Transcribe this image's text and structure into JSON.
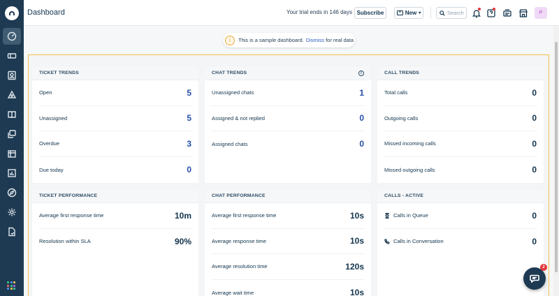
{
  "header": {
    "title": "Dashboard",
    "trial_text": "Your trial ends in 146 days",
    "subscribe_label": "Subscribe",
    "new_label": "New",
    "search_placeholder": "Search",
    "avatar_initial": "P"
  },
  "notice": {
    "text": "This is a sample dashboard.",
    "dismiss": "Dismiss",
    "suffix": "for real data"
  },
  "ticket_trends": {
    "title": "TICKET TRENDS",
    "rows": [
      {
        "label": "Open",
        "value": "5"
      },
      {
        "label": "Unassigned",
        "value": "5"
      },
      {
        "label": "Overdue",
        "value": "3"
      },
      {
        "label": "Due today",
        "value": "0"
      }
    ]
  },
  "chat_trends": {
    "title": "CHAT TRENDS",
    "rows": [
      {
        "label": "Unassigned chats",
        "value": "1"
      },
      {
        "label": "Assigned & not replied",
        "value": "0"
      },
      {
        "label": "Assigned chats",
        "value": "0"
      }
    ]
  },
  "call_trends": {
    "title": "CALL TRENDS",
    "rows": [
      {
        "label": "Total calls",
        "value": "0"
      },
      {
        "label": "Outgoing calls",
        "value": "0"
      },
      {
        "label": "Missed incoming calls",
        "value": "0"
      },
      {
        "label": "Missed outgoing calls",
        "value": "0"
      }
    ]
  },
  "ticket_performance": {
    "title": "TICKET PERFORMANCE",
    "rows": [
      {
        "label": "Average first response time",
        "value": "10m"
      },
      {
        "label": "Resolution within SLA",
        "value": "90%"
      }
    ]
  },
  "chat_performance": {
    "title": "CHAT PERFORMANCE",
    "rows": [
      {
        "label": "Average first response time",
        "value": "10s"
      },
      {
        "label": "Average response time",
        "value": "10s"
      },
      {
        "label": "Average resolution time",
        "value": "120s"
      },
      {
        "label": "Average wait time",
        "value": "10s"
      }
    ]
  },
  "calls_active": {
    "title": "CALLS - ACTIVE",
    "rows": [
      {
        "label": "Calls in Queue",
        "value": "0"
      },
      {
        "label": "Calls in Conversation",
        "value": "0"
      }
    ]
  },
  "chat_widget": {
    "badge": "2"
  },
  "colors": {
    "sidebar": "#1e3a52",
    "accent_blue": "#264fa8",
    "frame_border": "#f2c14b",
    "badge_red": "#e43538"
  }
}
